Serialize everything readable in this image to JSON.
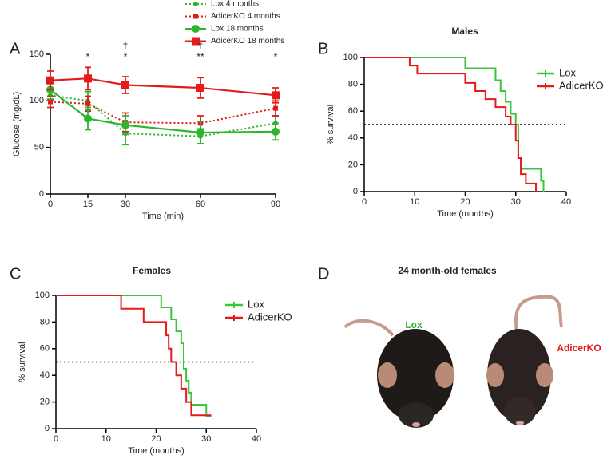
{
  "chart_data": [
    {
      "type": "line",
      "panel_label": "A",
      "xlabel": "Time (min)",
      "ylabel": "Glucose (mg/dL)",
      "x": [
        0,
        15,
        30,
        60,
        90
      ],
      "xlim": [
        0,
        90
      ],
      "xticks": [
        0,
        15,
        30,
        60,
        90
      ],
      "ylim": [
        0,
        150
      ],
      "yticks": [
        0,
        50,
        100,
        150
      ],
      "series": [
        {
          "name": "Lox 4 months",
          "color": "#2db52d",
          "dash": true,
          "marker": "circle",
          "size": 3,
          "values": [
            106,
            100,
            65,
            62,
            76
          ],
          "errors": [
            5,
            10,
            12,
            8,
            8
          ]
        },
        {
          "name": "AdicerKO 4 months",
          "color": "#e31b1b",
          "dash": true,
          "marker": "square",
          "size": 3,
          "values": [
            99,
            97,
            77,
            76,
            92
          ],
          "errors": [
            6,
            8,
            10,
            8,
            8
          ]
        },
        {
          "name": "Lox 18 months",
          "color": "#2db52d",
          "dash": false,
          "marker": "circle",
          "size": 5,
          "values": [
            112,
            81,
            74,
            66,
            67
          ],
          "errors": [
            10,
            12,
            10,
            12,
            9
          ]
        },
        {
          "name": "AdicerKO 18 months",
          "color": "#e31b1b",
          "dash": false,
          "marker": "square",
          "size": 5,
          "values": [
            122,
            124,
            117,
            114,
            106
          ],
          "errors": [
            10,
            12,
            9,
            11,
            8
          ]
        }
      ],
      "annotations": [
        {
          "x": 15,
          "lines": [
            "*"
          ]
        },
        {
          "x": 30,
          "lines": [
            "†",
            "*"
          ]
        },
        {
          "x": 60,
          "lines": [
            "†",
            "**"
          ]
        },
        {
          "x": 90,
          "lines": [
            "*"
          ]
        }
      ]
    },
    {
      "type": "step",
      "panel_label": "B",
      "title": "Males",
      "xlabel": "Time (months)",
      "ylabel": "% survival",
      "xlim": [
        0,
        40
      ],
      "xticks": [
        0,
        10,
        20,
        30,
        40
      ],
      "ylim": [
        0,
        100
      ],
      "yticks": [
        0,
        20,
        40,
        60,
        80,
        100
      ],
      "reference_line": 50,
      "series": [
        {
          "name": "Lox",
          "color": "#3cc43c",
          "x": [
            0,
            20,
            26,
            27,
            28,
            29,
            30,
            30.5,
            31,
            35,
            35.5
          ],
          "values": [
            100,
            92,
            83,
            75,
            67,
            58,
            50,
            25,
            17,
            8,
            0
          ]
        },
        {
          "name": "AdicerKO",
          "color": "#e31b1b",
          "x": [
            0,
            9,
            10.5,
            20,
            22,
            24,
            26,
            28,
            29,
            30,
            30.5,
            31,
            32,
            34
          ],
          "values": [
            100,
            94,
            88,
            81,
            75,
            69,
            63,
            56,
            50,
            38,
            25,
            13,
            6,
            0
          ]
        }
      ]
    },
    {
      "type": "step",
      "panel_label": "C",
      "title": "Females",
      "xlabel": "Time (months)",
      "ylabel": "% survival",
      "xlim": [
        0,
        40
      ],
      "xticks": [
        0,
        10,
        20,
        30,
        40
      ],
      "ylim": [
        0,
        100
      ],
      "yticks": [
        0,
        20,
        40,
        60,
        80,
        100
      ],
      "reference_line": 50,
      "series": [
        {
          "name": "Lox",
          "color": "#3cc43c",
          "x": [
            0,
            21,
            23,
            24,
            25,
            25.5,
            26,
            26.5,
            27,
            30,
            31
          ],
          "values": [
            100,
            91,
            82,
            73,
            64,
            45,
            36,
            27,
            18,
            9,
            9
          ]
        },
        {
          "name": "AdicerKO",
          "color": "#e31b1b",
          "x": [
            0,
            13,
            17.5,
            22,
            22.5,
            23,
            24,
            25,
            26,
            27,
            31
          ],
          "values": [
            100,
            90,
            80,
            70,
            60,
            50,
            40,
            30,
            20,
            10,
            10
          ]
        }
      ]
    }
  ],
  "panel_d": {
    "panel_label": "D",
    "title": "24 month-old females",
    "left_label": "Lox",
    "right_label": "AdicerKO"
  }
}
